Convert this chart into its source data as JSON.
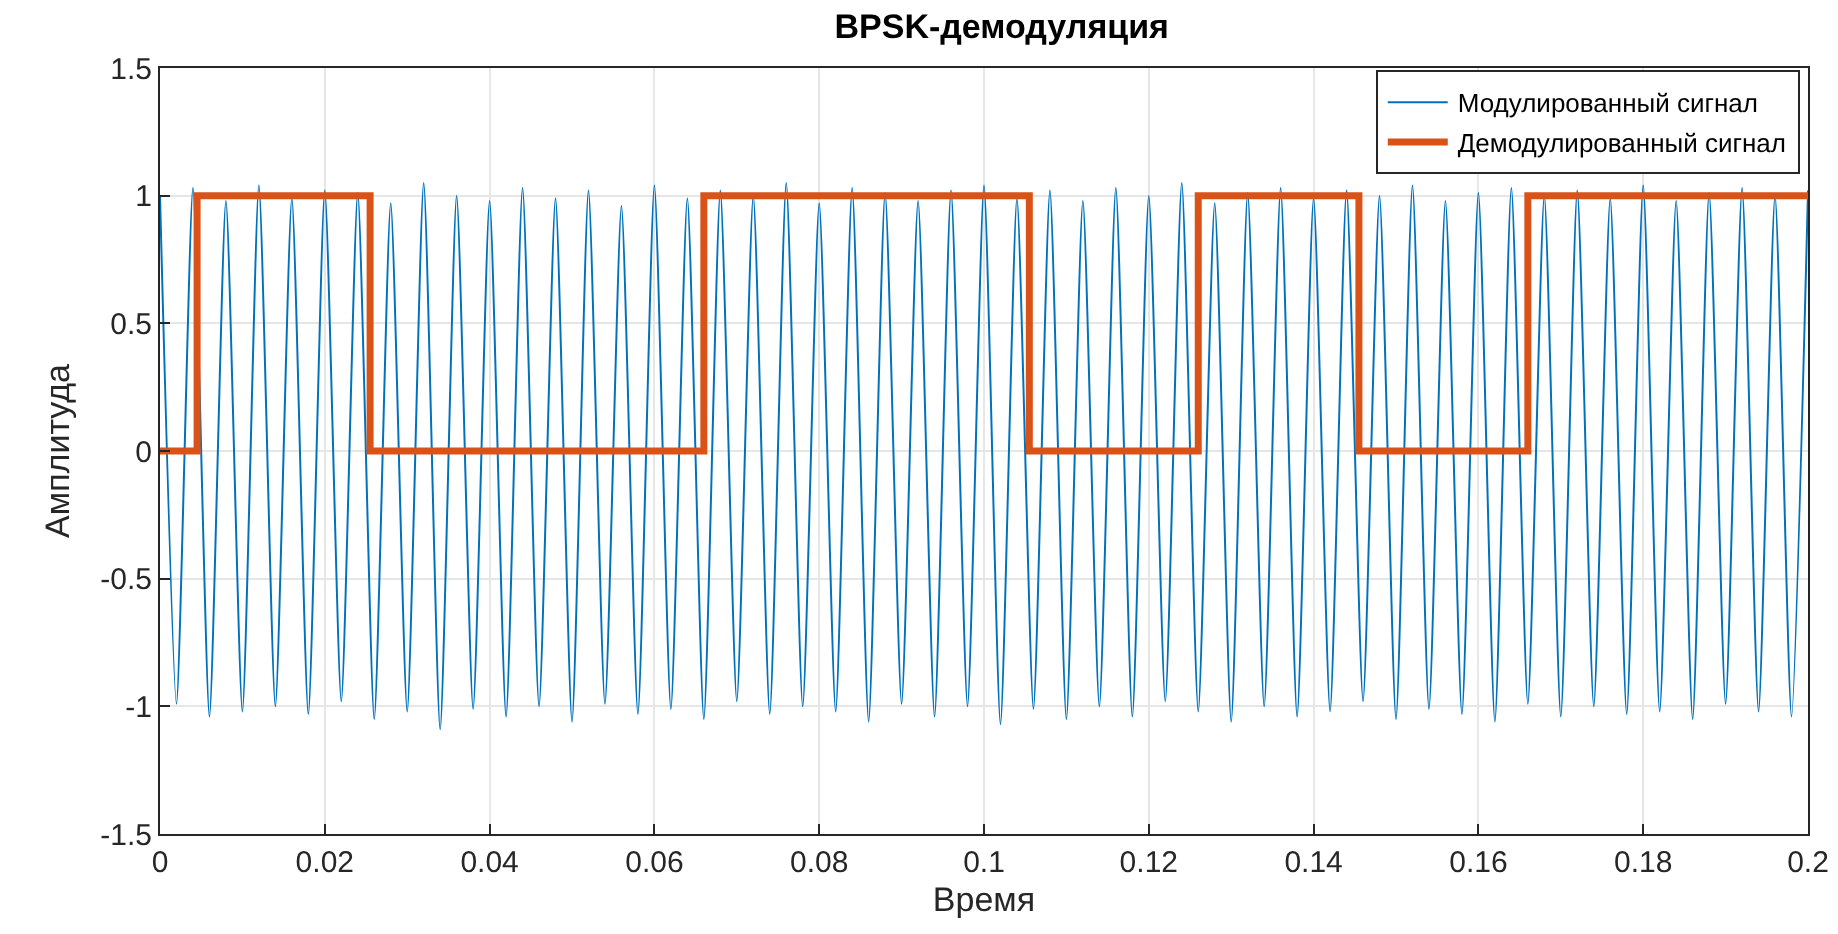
{
  "chart_data": {
    "type": "line",
    "title": "BPSK-демодуляция",
    "xlabel": "Время",
    "ylabel": "Амплитуда",
    "x": [
      0,
      0.002,
      0.004,
      0.006,
      0.008,
      0.01,
      0.012,
      0.014,
      0.016,
      0.018,
      0.02,
      0.022,
      0.024,
      0.026,
      0.028,
      0.03,
      0.032,
      0.034,
      0.036,
      0.038,
      0.04,
      0.042,
      0.044,
      0.046,
      0.048,
      0.05,
      0.052,
      0.054,
      0.056,
      0.058,
      0.06,
      0.062,
      0.064,
      0.066,
      0.068,
      0.07,
      0.072,
      0.074,
      0.076,
      0.078,
      0.08,
      0.082,
      0.084,
      0.086,
      0.088,
      0.09,
      0.092,
      0.094,
      0.096,
      0.098,
      0.1,
      0.102,
      0.104,
      0.106,
      0.108,
      0.11,
      0.112,
      0.114,
      0.116,
      0.118,
      0.12,
      0.122,
      0.124,
      0.126,
      0.128,
      0.13,
      0.132,
      0.134,
      0.136,
      0.138,
      0.14,
      0.142,
      0.144,
      0.146,
      0.148,
      0.15,
      0.152,
      0.154,
      0.156,
      0.158,
      0.16,
      0.162,
      0.164,
      0.166,
      0.168,
      0.17,
      0.172,
      0.174,
      0.176,
      0.178,
      0.18,
      0.182,
      0.184,
      0.186,
      0.188,
      0.19,
      0.192,
      0.194,
      0.196,
      0.198,
      0.2
    ],
    "series": [
      {
        "name": "Модулированный сигнал",
        "color": "#0072bd",
        "values": [
          1.0,
          -0.99,
          1.03,
          -1.04,
          0.98,
          -1.02,
          1.04,
          -1.0,
          0.99,
          -1.03,
          1.02,
          -0.98,
          1.01,
          -1.05,
          0.97,
          -1.02,
          1.05,
          -1.09,
          1.0,
          -1.01,
          0.98,
          -1.04,
          1.03,
          -1.0,
          0.99,
          -1.06,
          1.02,
          -0.99,
          0.96,
          -1.03,
          1.04,
          -1.01,
          0.99,
          -1.05,
          1.02,
          -0.98,
          1.0,
          -1.03,
          1.05,
          -1.0,
          0.97,
          -1.02,
          1.03,
          -1.06,
          1.01,
          -0.99,
          0.98,
          -1.04,
          1.02,
          -1.0,
          1.04,
          -1.07,
          0.99,
          -1.01,
          1.02,
          -1.05,
          0.98,
          -1.0,
          1.03,
          -1.04,
          1.0,
          -0.98,
          1.05,
          -1.02,
          0.97,
          -1.06,
          1.01,
          -1.0,
          1.03,
          -1.04,
          0.99,
          -1.02,
          1.02,
          -0.98,
          1.0,
          -1.05,
          1.04,
          -1.01,
          0.98,
          -1.03,
          1.01,
          -1.06,
          1.03,
          -0.99,
          1.0,
          -1.04,
          1.02,
          -1.0,
          0.99,
          -1.03,
          1.04,
          -1.02,
          0.98,
          -1.05,
          1.01,
          -0.99,
          1.03,
          -1.02,
          1.0,
          -1.04,
          1.02
        ]
      },
      {
        "name": "Демодулированный сигнал",
        "type": "step",
        "color": "#d95319",
        "x": [
          0,
          0.0045,
          0.0255,
          0.066,
          0.1055,
          0.126,
          0.1455,
          0.166,
          0.2
        ],
        "values": [
          0,
          1,
          0,
          1,
          0,
          1,
          0,
          1,
          1
        ]
      }
    ],
    "xlim": [
      0,
      0.2
    ],
    "xticks": [
      0,
      0.02,
      0.04,
      0.06,
      0.08,
      0.1,
      0.12,
      0.14,
      0.16,
      0.18,
      0.2
    ],
    "ylim": [
      -1.5,
      1.5
    ],
    "yticks": [
      -1.5,
      -1,
      -0.5,
      0,
      0.5,
      1,
      1.5
    ],
    "grid": true,
    "legend": "top right"
  }
}
